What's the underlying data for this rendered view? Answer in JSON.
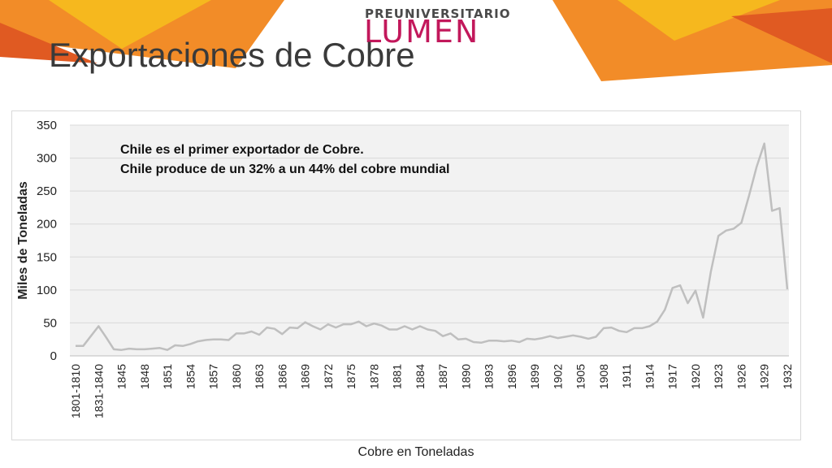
{
  "slide": {
    "title": "Exportaciones de Cobre",
    "logo_top": "PREUNIVERSITARIO",
    "logo_main": "LUMEN"
  },
  "colors": {
    "banner_orange": "#f28c28",
    "banner_yellow": "#f6b81e",
    "banner_red": "#e05a22",
    "logo_magenta": "#c2185b",
    "line": "#bfbfbf",
    "plot_bg": "#f2f2f2",
    "grid": "#d9d9d9"
  },
  "chart_data": {
    "type": "line",
    "ylabel": "Miles de Toneladas",
    "xlabel": "Cobre en Toneladas",
    "ylim": [
      0,
      350
    ],
    "yticks": [
      0,
      50,
      100,
      150,
      200,
      250,
      300,
      350
    ],
    "grid": true,
    "annotation": [
      "Chile es el primer exportador de Cobre.",
      "Chile produce de un 32% a un 44% del cobre mundial"
    ],
    "x_tick_labels": [
      "1801-1810",
      "1831-1840",
      "1845",
      "1848",
      "1851",
      "1854",
      "1857",
      "1860",
      "1863",
      "1866",
      "1869",
      "1872",
      "1875",
      "1878",
      "1881",
      "1884",
      "1887",
      "1890",
      "1893",
      "1896",
      "1899",
      "1902",
      "1905",
      "1908",
      "1911",
      "1914",
      "1917",
      "1920",
      "1923",
      "1926",
      "1929",
      "1932"
    ],
    "series": [
      {
        "values": [
          15,
          15,
          30,
          45,
          28,
          10,
          9,
          11,
          10,
          10,
          11,
          12,
          9,
          16,
          15,
          18,
          22,
          24,
          25,
          25,
          24,
          34,
          34,
          37,
          32,
          43,
          41,
          33,
          43,
          42,
          51,
          45,
          40,
          48,
          43,
          48,
          48,
          52,
          45,
          49,
          46,
          40,
          40,
          45,
          40,
          45,
          40,
          38,
          30,
          34,
          25,
          26,
          21,
          20,
          23,
          23,
          22,
          23,
          21,
          26,
          25,
          27,
          30,
          27,
          29,
          31,
          29,
          26,
          29,
          42,
          43,
          38,
          36,
          42,
          42,
          45,
          52,
          70,
          103,
          107,
          80,
          99,
          58,
          127,
          182,
          190,
          193,
          202,
          243,
          287,
          322,
          220,
          224,
          101
        ]
      }
    ]
  }
}
